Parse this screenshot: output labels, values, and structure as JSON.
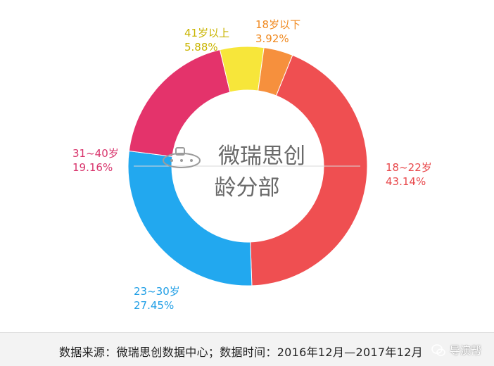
{
  "chart_data": {
    "type": "pie",
    "donut": true,
    "title": "微瑞思创\n龄分部",
    "title_lines": [
      "微瑞思创",
      "龄分部"
    ],
    "unit": "%",
    "categories": [
      "18~22岁",
      "23~30岁",
      "31~40岁",
      "41岁以上",
      "18岁以下"
    ],
    "values": [
      43.14,
      27.45,
      19.16,
      5.88,
      3.92
    ],
    "labels": [
      "43.14%",
      "27.45%",
      "19.16%",
      "5.88%",
      "3.92%"
    ],
    "colors": [
      "#ef4f51",
      "#22a8ef",
      "#e4336b",
      "#f7e63a",
      "#f6903d"
    ],
    "label_colors": [
      "#e8474a",
      "#1f9ee5",
      "#d8336b",
      "#c9b400",
      "#f0891f"
    ],
    "legend": "labels beside slices"
  },
  "footer": {
    "source_text": "数据来源：微瑞思创数据中心；数据时间：2016年12月—2017年12月",
    "badge_text": "导演帮"
  },
  "icons": {
    "wechat": "wechat-icon"
  }
}
